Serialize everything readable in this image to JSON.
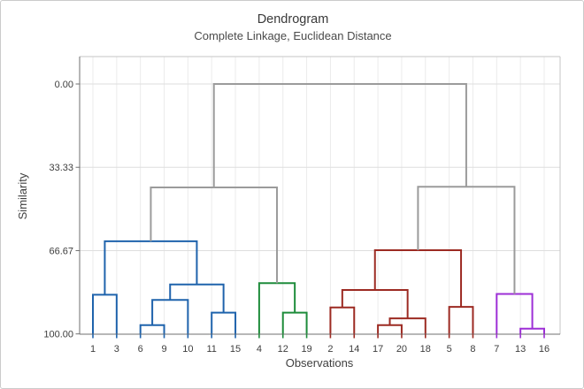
{
  "chart_data": {
    "type": "dendrogram",
    "title": "Dendrogram",
    "subtitle": "Complete Linkage, Euclidean Distance",
    "xlabel": "Observations",
    "ylabel": "Similarity",
    "y_axis": {
      "tick_labels": [
        "0.00",
        "33.33",
        "66.67",
        "100.00"
      ],
      "tick_values": [
        0,
        33.33,
        66.67,
        100
      ],
      "range": [
        0,
        100
      ],
      "inverted": true,
      "grid": true
    },
    "leaves": [
      "1",
      "3",
      "6",
      "9",
      "10",
      "11",
      "15",
      "4",
      "12",
      "19",
      "2",
      "14",
      "17",
      "20",
      "18",
      "5",
      "8",
      "7",
      "13",
      "16"
    ],
    "leaf_colors": [
      "blue",
      "blue",
      "blue",
      "blue",
      "blue",
      "blue",
      "blue",
      "green",
      "green",
      "green",
      "red",
      "red",
      "red",
      "red",
      "red",
      "red",
      "red",
      "purple",
      "purple",
      "purple"
    ],
    "colors": {
      "blue": "#1F63AC",
      "green": "#1E8C3B",
      "red": "#9C2A22",
      "purple": "#9D2FD6",
      "gray": "#9B9B9B"
    },
    "merges": [
      {
        "id": "B-69",
        "children": [
          "6",
          "9"
        ],
        "similarity": 96.5,
        "color": "blue"
      },
      {
        "id": "B-1115",
        "children": [
          "11",
          "15"
        ],
        "similarity": 91.5,
        "color": "blue"
      },
      {
        "id": "B-6910",
        "children": [
          "B-69",
          "10"
        ],
        "similarity": 86.4,
        "color": "blue"
      },
      {
        "id": "B-5",
        "children": [
          "B-6910",
          "B-1115"
        ],
        "similarity": 80.2,
        "color": "blue"
      },
      {
        "id": "B-13",
        "children": [
          "1",
          "3"
        ],
        "similarity": 84.3,
        "color": "blue"
      },
      {
        "id": "B-top",
        "children": [
          "B-13",
          "B-5"
        ],
        "similarity": 62.9,
        "color": "blue"
      },
      {
        "id": "G-1219",
        "children": [
          "12",
          "19"
        ],
        "similarity": 91.5,
        "color": "green"
      },
      {
        "id": "G-top",
        "children": [
          "4",
          "G-1219"
        ],
        "similarity": 79.7,
        "color": "green"
      },
      {
        "id": "R-214",
        "children": [
          "2",
          "14"
        ],
        "similarity": 89.4,
        "color": "red"
      },
      {
        "id": "R-1720",
        "children": [
          "17",
          "20"
        ],
        "similarity": 96.5,
        "color": "red"
      },
      {
        "id": "R-172018",
        "children": [
          "R-1720",
          "18"
        ],
        "similarity": 93.8,
        "color": "red"
      },
      {
        "id": "R-4",
        "children": [
          "R-214",
          "R-172018"
        ],
        "similarity": 82.4,
        "color": "red"
      },
      {
        "id": "R-58",
        "children": [
          "5",
          "8"
        ],
        "similarity": 89.2,
        "color": "red"
      },
      {
        "id": "R-top",
        "children": [
          "R-4",
          "R-58"
        ],
        "similarity": 66.5,
        "color": "red"
      },
      {
        "id": "P-1316",
        "children": [
          "13",
          "16"
        ],
        "similarity": 97.9,
        "color": "purple"
      },
      {
        "id": "P-top",
        "children": [
          "7",
          "P-1316"
        ],
        "similarity": 84.0,
        "color": "purple"
      },
      {
        "id": "X-left",
        "children": [
          "B-top",
          "G-top"
        ],
        "similarity": 41.4,
        "color": "gray"
      },
      {
        "id": "X-right",
        "children": [
          "R-top",
          "P-top"
        ],
        "similarity": 41.1,
        "color": "gray"
      },
      {
        "id": "root",
        "children": [
          "X-left",
          "X-right"
        ],
        "similarity": 0.0,
        "color": "gray"
      }
    ]
  }
}
